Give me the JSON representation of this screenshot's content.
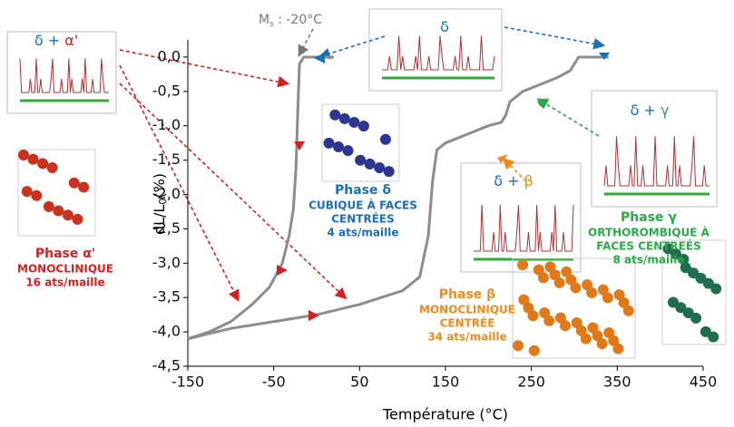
{
  "chart_data": {
    "type": "line",
    "x_label": "Température (°C)",
    "y_label": {
      "main": "dL/L",
      "sub": "0",
      "rest": "(%)"
    },
    "xlim": [
      -150,
      450
    ],
    "xticks": [
      -150,
      -50,
      50,
      150,
      250,
      350,
      450
    ],
    "ylim": [
      -4.5,
      0.25
    ],
    "yticks": [
      {
        "value": 0,
        "label": "0,0"
      },
      {
        "value": -0.5,
        "label": "-0,5"
      },
      {
        "value": -1,
        "label": "-1,0"
      },
      {
        "value": -1.5,
        "label": "-1,5"
      },
      {
        "value": -2,
        "label": "-2,0"
      },
      {
        "value": -2.5,
        "label": "-2,5"
      },
      {
        "value": -3,
        "label": "-3,0"
      },
      {
        "value": -3.5,
        "label": "-3,5"
      },
      {
        "value": -4,
        "label": "-4,0"
      },
      {
        "value": -4.5,
        "label": "-4,5"
      }
    ],
    "series": [
      {
        "color": "#8c8c8c",
        "x": [
          20,
          -15,
          -20,
          -22,
          -24,
          -27,
          -32,
          -40,
          -55,
          -75,
          -100,
          -125,
          -150
        ],
        "values": [
          0,
          0,
          -0.1,
          -0.8,
          -1.6,
          -2.2,
          -2.6,
          -3.0,
          -3.35,
          -3.6,
          -3.85,
          -4.0,
          -4.1
        ]
      },
      {
        "color": "#8c8c8c",
        "x": [
          -150,
          -100,
          -50,
          0,
          50,
          100,
          120,
          130,
          135,
          140,
          150,
          170,
          200,
          215,
          220,
          225,
          240,
          260,
          280,
          295,
          300,
          305,
          310,
          340
        ],
        "values": [
          -4.1,
          -3.95,
          -3.85,
          -3.75,
          -3.6,
          -3.4,
          -3.2,
          -2.6,
          -1.8,
          -1.35,
          -1.25,
          -1.15,
          -1.0,
          -0.95,
          -0.85,
          -0.65,
          -0.5,
          -0.4,
          -0.3,
          -0.2,
          -0.1,
          0,
          0,
          0
        ]
      }
    ],
    "ms_annotation": {
      "main": "M",
      "sub": "s",
      "rest": " : -20°C"
    },
    "insets": [
      {
        "parts": [
          {
            "text": "δ",
            "color": "#1a6fb5"
          },
          {
            "text": " + ",
            "color": "#1a6fb5"
          },
          {
            "text": "α'",
            "color": "#d42020"
          }
        ]
      },
      {
        "parts": [
          {
            "text": "δ",
            "color": "#1a6fb5"
          }
        ]
      },
      {
        "parts": [
          {
            "text": "δ",
            "color": "#1a6fb5"
          },
          {
            "text": " + ",
            "color": "#1a6fb5"
          },
          {
            "text": "γ",
            "color": "#2aa84a"
          }
        ]
      },
      {
        "parts": [
          {
            "text": "δ",
            "color": "#1a6fb5"
          },
          {
            "text": " + ",
            "color": "#1a6fb5"
          },
          {
            "text": "β",
            "color": "#f08a1c"
          }
        ]
      }
    ],
    "phases": [
      {
        "color": "#d42020",
        "lines": [
          "Phase α'",
          "MONOCLINIQUE",
          "16 ats/maille"
        ]
      },
      {
        "color": "#1a6fb5",
        "lines": [
          "Phase δ",
          "CUBIQUE À FACES",
          "CENTRÉES",
          "4 ats/maille"
        ]
      },
      {
        "color": "#f08a1c",
        "lines": [
          "Phase β",
          "MONOCLINIQUE",
          "CENTRÉE",
          "34 ats/maille"
        ]
      },
      {
        "color": "#2aa84a",
        "lines": [
          "Phase γ",
          "ORTHOROMBIQUE À",
          "FACES CENTREÉS",
          "8 ats/maille"
        ]
      }
    ]
  }
}
